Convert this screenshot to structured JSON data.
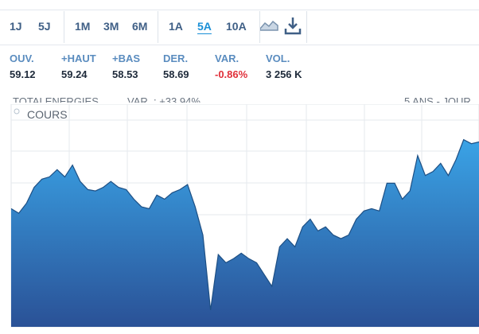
{
  "toolbar": {
    "groups": [
      [
        "1J",
        "5J"
      ],
      [
        "1M",
        "3M",
        "6M"
      ],
      [
        "1A",
        "5A",
        "10A"
      ]
    ],
    "active": "5A"
  },
  "stats": [
    {
      "label": "OUV.",
      "value": "59.12"
    },
    {
      "label": "+HAUT",
      "value": "59.24"
    },
    {
      "label": "+BAS",
      "value": "58.53"
    },
    {
      "label": "DER.",
      "value": "58.69"
    },
    {
      "label": "VAR.",
      "value": "-0.86%"
    },
    {
      "label": "VOL.",
      "value": "3 256 K"
    }
  ],
  "chart_header": {
    "name": "TOTALENERGIES",
    "change": "VAR. : +33.94%",
    "period": "5 ANS - JOUR"
  },
  "chart_data": {
    "type": "area",
    "series": [
      {
        "name": "COURS",
        "color": "#2f86cc",
        "values": [
          44.0,
          43.0,
          45.2,
          48.7,
          50.5,
          51.0,
          52.6,
          51.0,
          53.6,
          50.0,
          48.2,
          47.9,
          48.7,
          50.0,
          48.7,
          48.2,
          46.1,
          44.4,
          44.0,
          47.0,
          46.1,
          47.5,
          48.2,
          49.3,
          44.4,
          38.2,
          21.7,
          33.9,
          32.1,
          33.0,
          34.2,
          33.0,
          32.1,
          29.5,
          26.9,
          35.6,
          37.4,
          35.6,
          40.0,
          41.7,
          39.1,
          40.0,
          38.2,
          37.4,
          38.2,
          41.7,
          43.5,
          44.0,
          43.5,
          49.6,
          49.6,
          46.1,
          47.9,
          55.7,
          51.3,
          52.2,
          54.0,
          51.3,
          54.8,
          59.2,
          58.3,
          58.69
        ]
      }
    ],
    "ylim": [
      18,
      67
    ]
  }
}
